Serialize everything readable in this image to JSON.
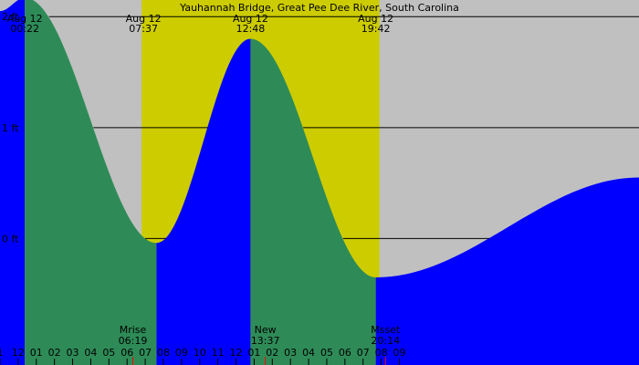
{
  "chart_data": {
    "type": "area",
    "title": "Yauhannah Bridge, Great Pee Dee River, South Carolina",
    "xlabel": "",
    "ylabel": "",
    "x_range_hours": [
      -1.0,
      34.2
    ],
    "ylim": [
      -1.14,
      2.15
    ],
    "y_ticks": [
      {
        "value": 2,
        "label": "2 ft"
      },
      {
        "value": 1,
        "label": "1 ft"
      },
      {
        "value": 0,
        "label": "0 ft"
      }
    ],
    "hour_labels": [
      "1",
      "12",
      "01",
      "02",
      "03",
      "04",
      "05",
      "06",
      "07",
      "08",
      "09",
      "10",
      "11",
      "12",
      "01",
      "02",
      "03",
      "04",
      "05",
      "06",
      "07",
      "08",
      "09"
    ],
    "daylight": {
      "start_hour": 6.8,
      "end_hour": 19.9
    },
    "tides": [
      {
        "date": "Aug 12",
        "time": "00:22",
        "hour": 0.367,
        "height": 2.17,
        "type": "high"
      },
      {
        "date": "Aug 12",
        "time": "07:37",
        "hour": 7.617,
        "height": -0.04,
        "type": "low"
      },
      {
        "date": "Aug 12",
        "time": "12:48",
        "hour": 12.8,
        "height": 1.8,
        "type": "high"
      },
      {
        "date": "Aug 12",
        "time": "19:42",
        "hour": 19.7,
        "height": -0.35,
        "type": "low"
      }
    ],
    "top_labels": [
      {
        "date": "Aug 12",
        "time": "00:22",
        "hour": 0.367
      },
      {
        "date": "Aug 12",
        "time": "07:37",
        "hour": 6.9
      },
      {
        "date": "Aug 12",
        "time": "12:48",
        "hour": 12.8
      },
      {
        "date": "Aug 12",
        "time": "19:42",
        "hour": 19.7
      }
    ],
    "start_height": 2.05,
    "end_hour": 34.2,
    "end_height": 0.55,
    "events": [
      {
        "label": "Mrise",
        "time": "06:19",
        "hour": 6.317
      },
      {
        "label": "New",
        "time": "13:37",
        "hour": 13.617
      },
      {
        "label": "Msset",
        "time": "20:14",
        "hour": 20.233
      }
    ],
    "colors": {
      "background": "#c0c0c0",
      "daylight": "#cccc00",
      "rising": "#0000ff",
      "falling": "#2e8b57",
      "event_tick": "#ff0000",
      "grid": "#000000"
    }
  }
}
